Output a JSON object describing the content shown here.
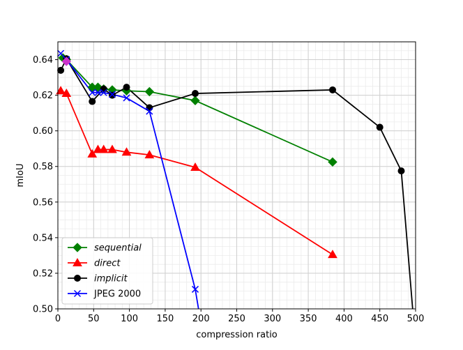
{
  "chart_data": {
    "type": "line",
    "title": "",
    "xlabel": "compression ratio",
    "ylabel": "mIoU",
    "xlim": [
      0,
      500
    ],
    "ylim": [
      0.5,
      0.65
    ],
    "xticks": [
      0,
      50,
      100,
      150,
      200,
      250,
      300,
      350,
      400,
      450,
      500
    ],
    "yticks": [
      0.5,
      0.52,
      0.54,
      0.56,
      0.58,
      0.6,
      0.62,
      0.64
    ],
    "xtick_labels": [
      "0",
      "50",
      "100",
      "150",
      "200",
      "250",
      "300",
      "350",
      "400",
      "450",
      "500"
    ],
    "ytick_labels": [
      "0.50",
      "0.52",
      "0.54",
      "0.56",
      "0.58",
      "0.60",
      "0.62",
      "0.64"
    ],
    "grid": true,
    "minor_grid": true,
    "legend_position": "lower-left",
    "series": [
      {
        "name": "sequential",
        "italic": true,
        "color": "#008000",
        "marker": "diamond",
        "x": [
          7,
          12,
          48,
          56,
          64,
          76,
          96,
          128,
          192,
          384
        ],
        "y": [
          0.641,
          0.64,
          0.6245,
          0.6245,
          0.6235,
          0.623,
          0.6225,
          0.622,
          0.617,
          0.5825
        ]
      },
      {
        "name": "direct",
        "italic": true,
        "color": "#ff0000",
        "marker": "triangle",
        "x": [
          4,
          12,
          48,
          56,
          64,
          76,
          96,
          128,
          192,
          384
        ],
        "y": [
          0.6225,
          0.621,
          0.587,
          0.5895,
          0.5895,
          0.5895,
          0.588,
          0.5865,
          0.5795,
          0.5305
        ]
      },
      {
        "name": "implicit",
        "italic": true,
        "color": "#000000",
        "marker": "circle",
        "x": [
          4,
          12,
          48,
          64,
          76,
          96,
          128,
          192,
          384,
          450,
          480,
          500
        ],
        "y": [
          0.634,
          0.6405,
          0.6165,
          0.6235,
          0.62,
          0.6245,
          0.613,
          0.621,
          0.623,
          0.602,
          0.5775,
          0.48
        ]
      },
      {
        "name": "JPEG 2000",
        "italic": false,
        "color": "#0000ff",
        "marker": "x",
        "x": [
          4,
          12,
          48,
          56,
          64,
          76,
          96,
          128,
          192,
          205
        ],
        "y": [
          0.6435,
          0.64,
          0.6215,
          0.6215,
          0.6215,
          0.6205,
          0.6185,
          0.611,
          0.511,
          0.48
        ]
      }
    ],
    "highlight_point": {
      "x": 12,
      "y": 0.639,
      "color": "#cc33cc",
      "marker": "diamond"
    }
  }
}
